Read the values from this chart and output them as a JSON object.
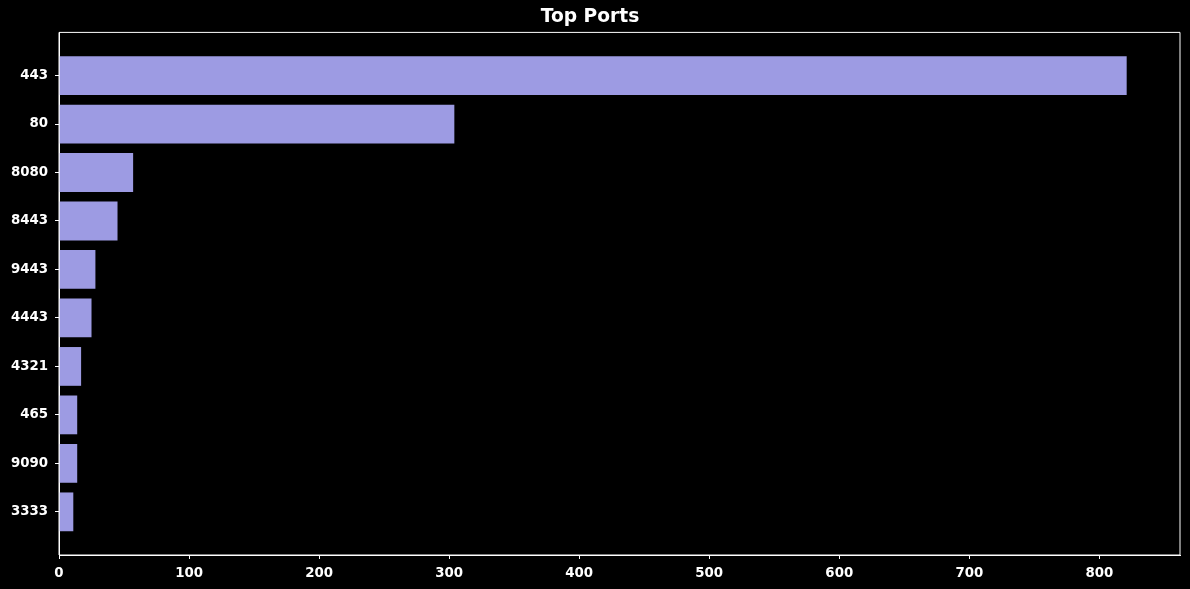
{
  "chart_data": {
    "type": "bar",
    "orientation": "horizontal",
    "title": "Top Ports",
    "categories": [
      "443",
      "80",
      "8080",
      "8443",
      "9443",
      "4443",
      "4321",
      "465",
      "9090",
      "3333"
    ],
    "values": [
      821,
      304,
      57,
      45,
      28,
      25,
      17,
      14,
      14,
      11
    ],
    "color": "#9d9be3",
    "xlim": [
      0,
      862
    ],
    "xticks": [
      0,
      100,
      200,
      300,
      400,
      500,
      600,
      700,
      800
    ],
    "grid": false,
    "legend": false
  }
}
